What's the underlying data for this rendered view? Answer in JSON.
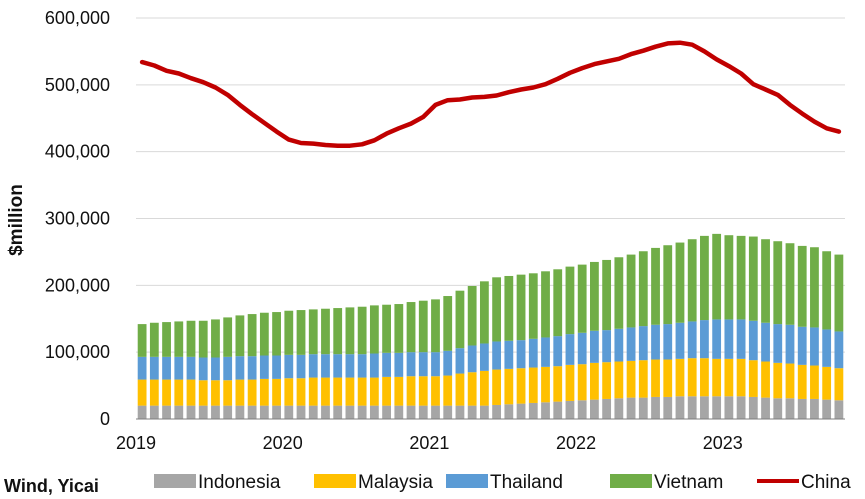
{
  "source_label": "Wind, Yicai",
  "colors": {
    "Indonesia": "#a6a6a6",
    "Malaysia": "#ffc000",
    "Thailand": "#5b9bd5",
    "Vietnam": "#70ad47",
    "China": "#c00000",
    "grid": "#d9d9d9"
  },
  "chart_data": {
    "type": "bar",
    "stacked": true,
    "ylabel": "$million",
    "xlabel": "",
    "ylim": [
      0,
      600000
    ],
    "yticks": [
      0,
      100000,
      200000,
      300000,
      400000,
      500000,
      600000
    ],
    "ytick_labels": [
      "0",
      "100,000",
      "200,000",
      "300,000",
      "400,000",
      "500,000",
      "600,000"
    ],
    "x_start": "2019-01",
    "x_end": "2023-10",
    "xtick_labels": [
      "2019",
      "2020",
      "2021",
      "2022",
      "2023"
    ],
    "grid": "horizontal",
    "legend_position": "bottom",
    "series": [
      {
        "name": "Indonesia",
        "kind": "bar",
        "values": [
          20000,
          20000,
          20000,
          20000,
          20000,
          20000,
          20000,
          20000,
          20000,
          20000,
          20000,
          20000,
          20000,
          20000,
          20000,
          20000,
          20000,
          20000,
          20000,
          20000,
          20000,
          20000,
          20000,
          20000,
          20000,
          20000,
          20000,
          20000,
          20000,
          21000,
          22000,
          23000,
          24000,
          25000,
          26000,
          27000,
          28000,
          29000,
          30000,
          31000,
          32000,
          32000,
          33000,
          33000,
          34000,
          34000,
          34000,
          34000,
          34000,
          34000,
          33000,
          32000,
          31000,
          31000,
          30000,
          30000,
          29000,
          28000
        ]
      },
      {
        "name": "Malaysia",
        "kind": "bar",
        "values": [
          39000,
          39000,
          39000,
          39000,
          39000,
          38000,
          38000,
          38000,
          39000,
          39000,
          40000,
          40000,
          41000,
          41000,
          42000,
          42000,
          42000,
          42000,
          42000,
          42000,
          43000,
          43000,
          44000,
          44000,
          44000,
          45000,
          48000,
          50000,
          52000,
          53000,
          53000,
          53000,
          53000,
          53000,
          53000,
          54000,
          54000,
          55000,
          55000,
          55000,
          55000,
          56000,
          56000,
          56000,
          56000,
          57000,
          57000,
          56000,
          56000,
          56000,
          55000,
          54000,
          53000,
          52000,
          51000,
          50000,
          49000,
          48000
        ]
      },
      {
        "name": "Thailand",
        "kind": "bar",
        "values": [
          34000,
          34000,
          34000,
          34000,
          34000,
          34000,
          34000,
          35000,
          35000,
          35000,
          35000,
          35000,
          35000,
          35000,
          35000,
          35000,
          35000,
          35000,
          35000,
          36000,
          36000,
          36000,
          36000,
          36000,
          36000,
          37000,
          38000,
          40000,
          41000,
          42000,
          42000,
          42000,
          43000,
          44000,
          45000,
          46000,
          47000,
          48000,
          48000,
          49000,
          50000,
          51000,
          52000,
          53000,
          54000,
          55000,
          57000,
          59000,
          59000,
          59000,
          59000,
          58000,
          58000,
          58000,
          57000,
          57000,
          56000,
          55000
        ]
      },
      {
        "name": "Vietnam",
        "kind": "bar",
        "values": [
          49000,
          51000,
          52000,
          53000,
          54000,
          55000,
          57000,
          59000,
          61000,
          63000,
          64000,
          65000,
          66000,
          67000,
          67000,
          68000,
          69000,
          70000,
          71000,
          72000,
          72000,
          73000,
          75000,
          77000,
          79000,
          82000,
          86000,
          89000,
          93000,
          96000,
          97000,
          98000,
          98000,
          99000,
          100000,
          101000,
          102000,
          103000,
          105000,
          107000,
          109000,
          112000,
          115000,
          118000,
          120000,
          123000,
          126000,
          128000,
          126000,
          125000,
          126000,
          125000,
          124000,
          122000,
          121000,
          120000,
          117000,
          115000
        ]
      },
      {
        "name": "China",
        "kind": "line",
        "values": [
          534000,
          529000,
          521000,
          517000,
          510000,
          504000,
          496000,
          485000,
          470000,
          456000,
          443000,
          430000,
          418000,
          413000,
          412000,
          410000,
          409000,
          409000,
          411000,
          417000,
          427000,
          435000,
          442000,
          452000,
          470000,
          477000,
          478000,
          481000,
          482000,
          484000,
          489000,
          493000,
          496000,
          501000,
          509000,
          518000,
          525000,
          531000,
          535000,
          539000,
          546000,
          551000,
          557000,
          562000,
          563000,
          560000,
          550000,
          538000,
          528000,
          517000,
          501000,
          493000,
          485000,
          470000,
          457000,
          445000,
          435000,
          430000
        ]
      }
    ]
  }
}
